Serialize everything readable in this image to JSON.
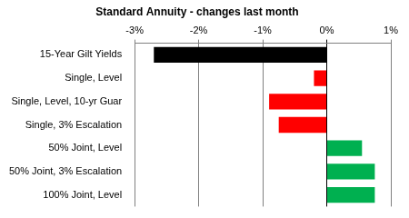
{
  "chart_data": {
    "type": "bar",
    "orientation": "horizontal",
    "title": "Standard Annuity - changes last month",
    "categories": [
      "15-Year Gilt Yields",
      "Single, Level",
      "Single, Level, 10-yr Guar",
      "Single, 3% Escalation",
      "50% Joint, Level",
      "50% Joint, 3% Escalation",
      "100% Joint, Level"
    ],
    "values": [
      -2.7,
      -0.2,
      -0.9,
      -0.75,
      0.55,
      0.75,
      0.75
    ],
    "colors": [
      "#000000",
      "#ff0000",
      "#ff0000",
      "#ff0000",
      "#00b050",
      "#00b050",
      "#00b050"
    ],
    "xlim": [
      -3,
      1
    ],
    "xticks": [
      {
        "value": -3,
        "label": "-3%"
      },
      {
        "value": -2,
        "label": "-2%"
      },
      {
        "value": -1,
        "label": "-1%"
      },
      {
        "value": 0,
        "label": "0%"
      },
      {
        "value": 1,
        "label": "1%"
      }
    ],
    "grid": true
  }
}
